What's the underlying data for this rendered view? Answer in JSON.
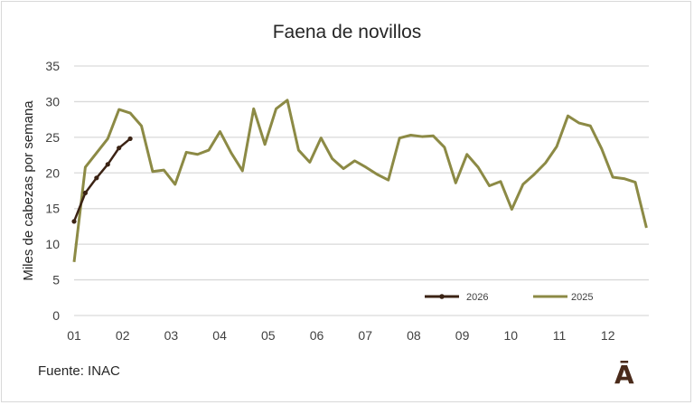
{
  "chart_data": {
    "type": "line",
    "title": "Faena de novillos",
    "ylabel": "Miles de cabezas por semana",
    "xlabel": "",
    "ylim": [
      0,
      35
    ],
    "yticks": [
      0,
      5,
      10,
      15,
      20,
      25,
      30,
      35
    ],
    "xtick_labels": [
      "01",
      "02",
      "03",
      "04",
      "05",
      "06",
      "07",
      "08",
      "09",
      "10",
      "11",
      "12"
    ],
    "grid": "horizontal",
    "legend_position": "bottom-right",
    "series": [
      {
        "name": "2026",
        "color": "#3b2314",
        "markers": true,
        "values": [
          13.2,
          17.2,
          19.3,
          21.2,
          23.5,
          24.8
        ]
      },
      {
        "name": "2025",
        "color": "#8c8a45",
        "markers": false,
        "values": [
          7.5,
          20.8,
          22.8,
          24.8,
          28.9,
          28.4,
          26.6,
          20.2,
          20.4,
          18.4,
          22.9,
          22.6,
          23.2,
          25.8,
          22.8,
          20.3,
          29.0,
          24.0,
          29.0,
          30.2,
          23.2,
          21.5,
          24.9,
          22.0,
          20.6,
          21.7,
          20.8,
          19.8,
          19.0,
          24.9,
          25.3,
          25.1,
          25.2,
          23.6,
          18.6,
          22.6,
          20.8,
          18.2,
          18.8,
          14.9,
          18.4,
          19.8,
          21.4,
          23.7,
          28.0,
          27.0,
          26.6,
          23.4,
          19.4,
          19.2,
          18.7,
          12.3
        ]
      }
    ]
  },
  "footer": {
    "source": "Fuente: INAC",
    "logo": "Ā"
  }
}
